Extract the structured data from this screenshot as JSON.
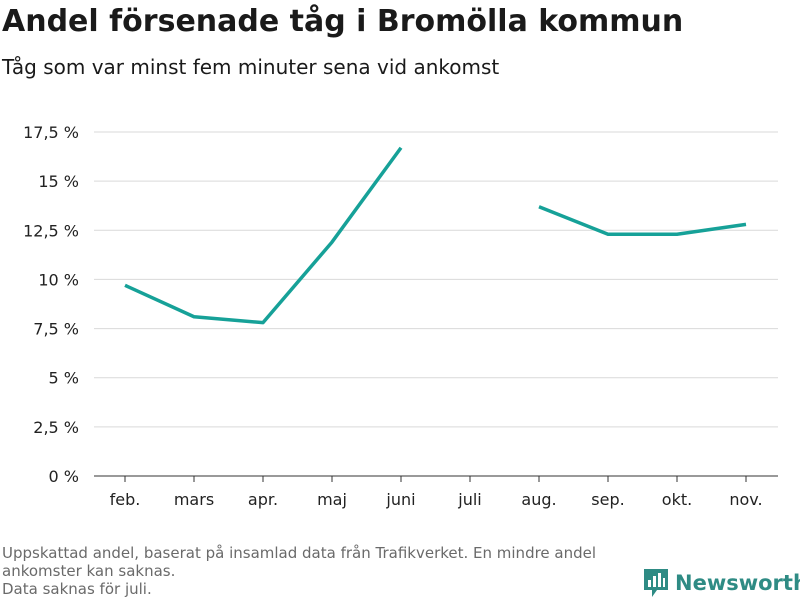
{
  "title": "Andel försenade tåg i Bromölla kommun",
  "subtitle": "Tåg som var minst fem minuter sena vid ankomst",
  "footnote": {
    "line1": "Uppskattad andel, baserat på insamlad data från Trafikverket. En mindre andel",
    "line2": "ankomster kan saknas.",
    "line3": "Data saknas för juli."
  },
  "brand": {
    "name": "Newsworthy",
    "icon": "bar-chart-logo-icon",
    "color": "#2e8b84"
  },
  "chart_data": {
    "type": "line",
    "categories": [
      "feb.",
      "mars",
      "apr.",
      "maj",
      "juni",
      "juli",
      "aug.",
      "sep.",
      "okt.",
      "nov."
    ],
    "series": [
      {
        "values": [
          9.7,
          8.1,
          7.8,
          11.9,
          16.7,
          null,
          13.7,
          12.3,
          12.3,
          12.8
        ]
      }
    ],
    "ylim": [
      0,
      17.5
    ],
    "yticks": [
      0,
      2.5,
      5,
      7.5,
      10,
      12.5,
      15,
      17.5
    ],
    "ytick_labels": [
      "0 %",
      "2,5 %",
      "5 %",
      "7,5 %",
      "10 %",
      "12,5 %",
      "15 %",
      "17,5 %"
    ],
    "grid": true,
    "line_color": "#16a198"
  }
}
